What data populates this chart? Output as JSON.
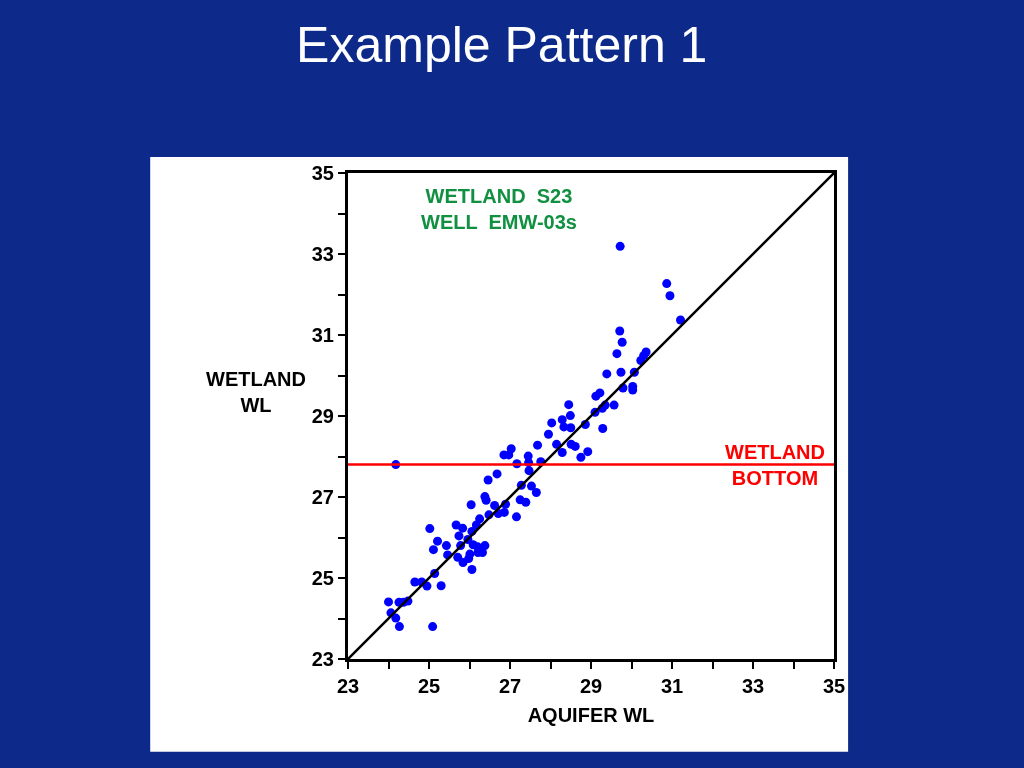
{
  "chart_data": {
    "type": "scatter",
    "title": "Example Pattern 1",
    "xlabel": "AQUIFER WL",
    "ylabel": "WETLAND\nWL",
    "annotations": [
      "WETLAND  S23\nWELL  EMW-03s"
    ],
    "xlim": [
      23,
      35
    ],
    "ylim": [
      23,
      35
    ],
    "xticks": [
      23,
      {
        "value": 24,
        "label": null
      },
      25,
      {
        "value": 26,
        "label": null
      },
      27,
      {
        "value": 28,
        "label": null
      },
      29,
      {
        "value": 30,
        "label": null
      },
      31,
      {
        "value": 32,
        "label": null
      },
      33,
      {
        "value": 34,
        "label": null
      },
      35
    ],
    "yticks": [
      23,
      {
        "value": 24,
        "label": null
      },
      25,
      {
        "value": 26,
        "label": null
      },
      27,
      {
        "value": 28,
        "label": null
      },
      29,
      {
        "value": 30,
        "label": null
      },
      31,
      {
        "value": 32,
        "label": null
      },
      33,
      {
        "value": 34,
        "label": null
      },
      35
    ],
    "ref_lines": [
      {
        "axis": "y",
        "value": 27.8,
        "label": "WETLAND\nBOTTOM",
        "color": "#ff0000"
      }
    ],
    "series": [
      {
        "color": "#0000ff",
        "marker": "circle",
        "x": [
          29.72,
          30.87,
          30.95,
          31.21,
          29.71,
          29.77,
          29.64,
          30.36,
          30.3,
          30.23,
          29.39,
          29.74,
          30.07,
          29.79,
          30.03,
          30.03,
          29.12,
          29.22,
          29.57,
          29.35,
          29.28,
          29.1,
          29.29,
          28.45,
          28.49,
          28.29,
          28.03,
          28.33,
          28.5,
          28.86,
          27.95,
          28.15,
          28.51,
          28.61,
          28.29,
          28.75,
          28.92,
          27.68,
          26.85,
          27.03,
          26.97,
          27.45,
          27.46,
          27.17,
          27.76,
          27.47,
          24.18,
          26.68,
          26.46,
          27.28,
          27.53,
          27.65,
          26.38,
          26.41,
          27.25,
          27.39,
          26.04,
          26.62,
          26.89,
          26.86,
          26.71,
          26.48,
          26.25,
          27.16,
          26.17,
          25.67,
          25.83,
          26.06,
          25.02,
          25.74,
          25.96,
          25.21,
          25.78,
          26.09,
          26.2,
          26.38,
          25.43,
          25.11,
          25.46,
          25.71,
          26.01,
          26.21,
          26.32,
          25.84,
          25.98,
          26.06,
          25.14,
          24.65,
          24.82,
          24.95,
          25.3,
          24.0,
          24.26,
          24.48,
          24.37,
          24.06,
          24.18,
          24.27,
          25.09
        ],
        "values": [
          33.19,
          32.27,
          31.97,
          31.37,
          31.1,
          30.82,
          30.54,
          30.58,
          30.49,
          30.37,
          30.04,
          30.08,
          30.08,
          29.69,
          29.73,
          29.64,
          29.49,
          29.57,
          29.27,
          29.27,
          29.19,
          29.09,
          28.69,
          29.28,
          29.01,
          28.91,
          28.83,
          28.73,
          28.71,
          28.79,
          28.55,
          28.3,
          28.3,
          28.25,
          28.1,
          27.98,
          28.12,
          28.28,
          28.04,
          28.19,
          28.04,
          28.01,
          27.85,
          27.82,
          27.87,
          27.65,
          27.8,
          27.57,
          27.42,
          27.29,
          27.27,
          27.11,
          27.01,
          26.92,
          26.93,
          26.87,
          26.81,
          26.79,
          26.82,
          26.62,
          26.59,
          26.56,
          26.46,
          26.51,
          26.31,
          26.31,
          26.23,
          26.15,
          26.22,
          26.04,
          25.95,
          25.91,
          25.8,
          25.82,
          25.77,
          25.8,
          25.8,
          25.7,
          25.57,
          25.51,
          25.59,
          25.63,
          25.63,
          25.38,
          25.48,
          25.21,
          25.11,
          24.9,
          24.9,
          24.8,
          24.81,
          24.41,
          24.4,
          24.43,
          24.4,
          24.14,
          24.01,
          23.8,
          23.8
        ]
      },
      {
        "type": "line",
        "color": "#000000",
        "marker": "none",
        "line_style": "solid",
        "x": [
          23,
          35
        ],
        "values": [
          23,
          35
        ]
      }
    ]
  }
}
